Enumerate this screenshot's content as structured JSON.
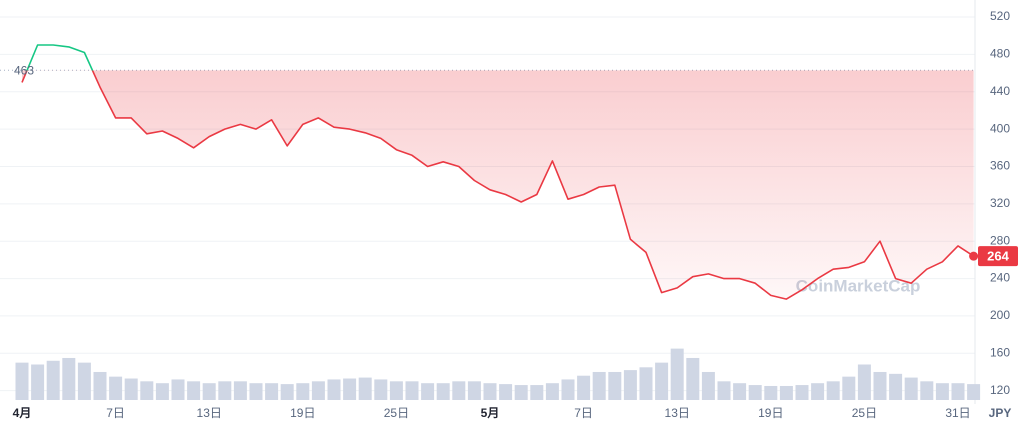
{
  "chart_data": {
    "type": "line",
    "categories": [
      "4月",
      null,
      null,
      null,
      null,
      null,
      "7日",
      null,
      null,
      null,
      null,
      null,
      "13日",
      null,
      null,
      null,
      null,
      null,
      "19日",
      null,
      null,
      null,
      null,
      null,
      "25日",
      null,
      null,
      null,
      null,
      null,
      "5月",
      null,
      null,
      null,
      null,
      null,
      "7日",
      null,
      null,
      null,
      null,
      null,
      "13日",
      null,
      null,
      null,
      null,
      null,
      "19日",
      null,
      null,
      null,
      null,
      null,
      "25日",
      null,
      null,
      null,
      null,
      null,
      "31日",
      null
    ],
    "series": [
      {
        "color": "#ea3943",
        "values": [
          450,
          490,
          490,
          488,
          482,
          445,
          412,
          412,
          395,
          398,
          390,
          380,
          392,
          400,
          405,
          400,
          410,
          382,
          405,
          412,
          402,
          400,
          396,
          390,
          378,
          372,
          360,
          365,
          360,
          345,
          335,
          330,
          322,
          330,
          366,
          325,
          330,
          338,
          340,
          282,
          268,
          225,
          230,
          242,
          245,
          240,
          240,
          235,
          222,
          218,
          228,
          240,
          250,
          252,
          258,
          280,
          240,
          235,
          250,
          258,
          275,
          264
        ]
      }
    ],
    "rise_color": "#16c784",
    "volume": {
      "color": "#cfd6e4",
      "values": [
        150,
        148,
        152,
        155,
        150,
        140,
        135,
        133,
        130,
        128,
        132,
        130,
        128,
        130,
        130,
        128,
        128,
        127,
        128,
        130,
        132,
        133,
        134,
        132,
        130,
        130,
        128,
        128,
        130,
        130,
        128,
        127,
        126,
        126,
        128,
        132,
        136,
        140,
        140,
        142,
        145,
        150,
        165,
        155,
        140,
        130,
        128,
        126,
        125,
        125,
        126,
        128,
        130,
        135,
        148,
        140,
        138,
        134,
        130,
        128,
        128,
        127
      ]
    },
    "reference": 463,
    "ylim": [
      110,
      535
    ],
    "yticks": [
      120,
      160,
      200,
      240,
      280,
      320,
      360,
      400,
      440,
      480,
      520
    ],
    "y_axis_label": "JPY",
    "watermark": "CoinMarketCap",
    "grid": true
  }
}
